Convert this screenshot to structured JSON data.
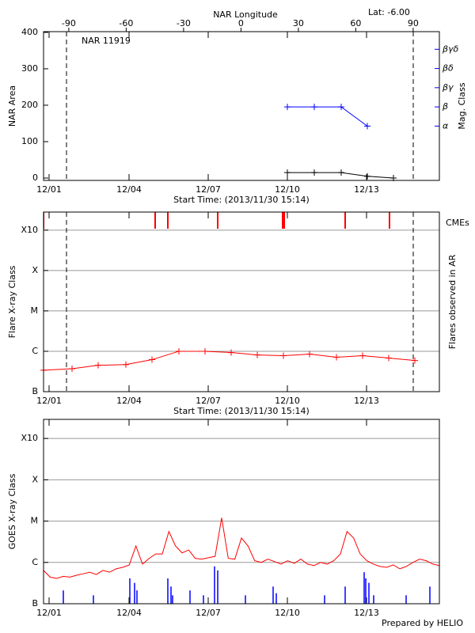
{
  "chart_data": [
    {
      "type": "line",
      "title": "NAR 11919",
      "annotation": "Lat:  -6.00",
      "x2label": "NAR Longitude",
      "xlabel": "Start Time: (2013/11/30 15:14)",
      "ylabel": "NAR Area",
      "y2label": "Mag. Class",
      "xlim": [
        0,
        15
      ],
      "xticks": [
        {
          "value": 0.21,
          "label": "12/01"
        },
        {
          "value": 3.24,
          "label": "12/04"
        },
        {
          "value": 6.24,
          "label": "12/07"
        },
        {
          "value": 9.24,
          "label": "12/10"
        },
        {
          "value": 12.24,
          "label": "12/13"
        }
      ],
      "x2lim": [
        -103.2,
        103.7
      ],
      "x2ticks": [
        -90,
        -60,
        -30,
        0,
        30,
        60,
        90
      ],
      "ylim": [
        -6.5,
        402
      ],
      "yticks": [
        0,
        100,
        200,
        300,
        400
      ],
      "y2lim": [
        -1.83,
        5.92
      ],
      "y2ticks": [
        {
          "value": 1,
          "label": "α"
        },
        {
          "value": 2,
          "label": "β"
        },
        {
          "value": 3,
          "label": "βγ"
        },
        {
          "value": 4,
          "label": "βδ"
        },
        {
          "value": 5,
          "label": "βγδ"
        }
      ],
      "y2color": "#0000ff",
      "limb_days": [
        0.87,
        14.01
      ],
      "markers": "plus",
      "series": [
        {
          "color": "#000000",
          "x": [
            9.24,
            10.26,
            11.28,
            12.27,
            13.26
          ],
          "values": [
            15,
            15,
            15,
            5,
            0
          ]
        },
        {
          "color": "#0000ff",
          "axis": "y2",
          "x": [
            9.24,
            10.26,
            11.28,
            12.27
          ],
          "values": [
            2,
            2,
            2,
            1
          ]
        }
      ]
    },
    {
      "type": "line",
      "xlabel": "Start Time: (2013/11/30 15:14)",
      "ylabel": "Flare X-ray Class",
      "y2label": "Flares observed in AR",
      "xlim": [
        0,
        15
      ],
      "xticks": [
        {
          "value": 0.21,
          "label": "12/01"
        },
        {
          "value": 3.24,
          "label": "12/04"
        },
        {
          "value": 6.24,
          "label": "12/07"
        },
        {
          "value": 9.24,
          "label": "12/10"
        },
        {
          "value": 12.24,
          "label": "12/13"
        }
      ],
      "log": true,
      "ylim": [
        1e-07,
        0.0028
      ],
      "grid": true,
      "yticks": [
        {
          "value": 1e-07,
          "label": "B"
        },
        {
          "value": 1e-06,
          "label": "C"
        },
        {
          "value": 1e-05,
          "label": "M"
        },
        {
          "value": 0.0001,
          "label": "X"
        },
        {
          "value": 0.001,
          "label": "X10"
        }
      ],
      "limb_days": [
        0.87,
        14.01
      ],
      "cme_label": "CMEs",
      "cme_color": "#ff0000",
      "cme_times": [
        0,
        4.23,
        4.71,
        6.6,
        9.06,
        9.12,
        11.43,
        13.11
      ],
      "markers": "plus",
      "series": [
        {
          "color": "#ff0000",
          "x": [
            0,
            1.08,
            2.07,
            3.12,
            4.11,
            5.13,
            6.12,
            7.11,
            8.1,
            9.09,
            10.08,
            11.1,
            12.09,
            13.08,
            14.07
          ],
          "values": [
            3.4e-07,
            3.7e-07,
            4.5e-07,
            4.7e-07,
            6.2e-07,
            1e-06,
            1e-06,
            9.3e-07,
            8.1e-07,
            7.8e-07,
            8.5e-07,
            7.1e-07,
            7.8e-07,
            6.8e-07,
            5.9e-07
          ]
        }
      ]
    },
    {
      "type": "line",
      "ylabel": "GOES X-ray Class",
      "xlim": [
        0,
        15
      ],
      "xticks": [
        {
          "value": 0.21,
          "label": "12/01"
        },
        {
          "value": 3.24,
          "label": "12/04"
        },
        {
          "value": 6.24,
          "label": "12/07"
        },
        {
          "value": 9.24,
          "label": "12/10"
        },
        {
          "value": 12.24,
          "label": "12/13"
        }
      ],
      "log": true,
      "ylim": [
        1e-07,
        0.0029
      ],
      "grid": true,
      "yticks": [
        {
          "value": 1e-07,
          "label": "B"
        },
        {
          "value": 1e-06,
          "label": "C"
        },
        {
          "value": 1e-05,
          "label": "M"
        },
        {
          "value": 0.0001,
          "label": "X"
        },
        {
          "value": 0.001,
          "label": "X10"
        }
      ],
      "series": [
        {
          "color": "#ff0000",
          "x": [
            0,
            0.25,
            0.5,
            0.75,
            1,
            1.25,
            1.5,
            1.75,
            2,
            2.25,
            2.5,
            2.75,
            3,
            3.25,
            3.5,
            3.75,
            4,
            4.25,
            4.5,
            4.75,
            5,
            5.25,
            5.5,
            5.75,
            6,
            6.25,
            6.5,
            6.75,
            7,
            7.25,
            7.5,
            7.75,
            8,
            8.25,
            8.5,
            8.75,
            9,
            9.25,
            9.5,
            9.75,
            10,
            10.25,
            10.5,
            10.75,
            11,
            11.25,
            11.5,
            11.75,
            12,
            12.25,
            12.5,
            12.75,
            13,
            13.25,
            13.5,
            13.75,
            14,
            14.25,
            14.5,
            14.75,
            15
          ],
          "values": [
            6.4e-07,
            4.4e-07,
            4.1e-07,
            4.6e-07,
            4.4e-07,
            4.9e-07,
            5.3e-07,
            5.8e-07,
            5.1e-07,
            6.4e-07,
            5.8e-07,
            7e-07,
            7.6e-07,
            8.7e-07,
            2.5e-06,
            9.1e-07,
            1.25e-06,
            1.6e-06,
            1.6e-06,
            5.6e-06,
            2.5e-06,
            1.7e-06,
            2e-06,
            1.25e-06,
            1.2e-06,
            1.3e-06,
            1.4e-06,
            1.2e-05,
            1.25e-06,
            1.2e-06,
            3.9e-06,
            2.5e-06,
            1.1e-06,
            1e-06,
            1.2e-06,
            1.05e-06,
            9.1e-07,
            1.1e-06,
            9.5e-07,
            1.2e-06,
            9.1e-07,
            8.4e-07,
            1e-06,
            9.1e-07,
            1.1e-06,
            1.6e-06,
            5.6e-06,
            3.9e-06,
            1.6e-06,
            1.1e-06,
            9.1e-07,
            8e-07,
            7.6e-07,
            8.7e-07,
            7e-07,
            8e-07,
            1e-06,
            1.2e-06,
            1.1e-06,
            9.1e-07,
            8.4e-07
          ]
        },
        {
          "color": "#0000ff",
          "style": "spikes",
          "x": [
            0.75,
            1.89,
            3.27,
            3.45,
            3.54,
            4.71,
            4.83,
            4.89,
            5.55,
            6.06,
            6.48,
            6.6,
            7.65,
            8.7,
            8.82,
            10.65,
            11.43,
            12.15,
            12.21,
            12.33,
            12.51,
            13.74,
            14.64
          ],
          "values": [
            2.1e-07,
            1.6e-07,
            4.1e-07,
            3.2e-07,
            2.1e-07,
            4.1e-07,
            2.6e-07,
            1.6e-07,
            2.1e-07,
            1.6e-07,
            8e-07,
            6.4e-07,
            1.6e-07,
            2.6e-07,
            1.8e-07,
            1.6e-07,
            2.6e-07,
            5.8e-07,
            4.1e-07,
            3.2e-07,
            1.6e-07,
            1.6e-07,
            2.6e-07
          ]
        }
      ]
    }
  ],
  "footer": "Prepared by HELIO"
}
